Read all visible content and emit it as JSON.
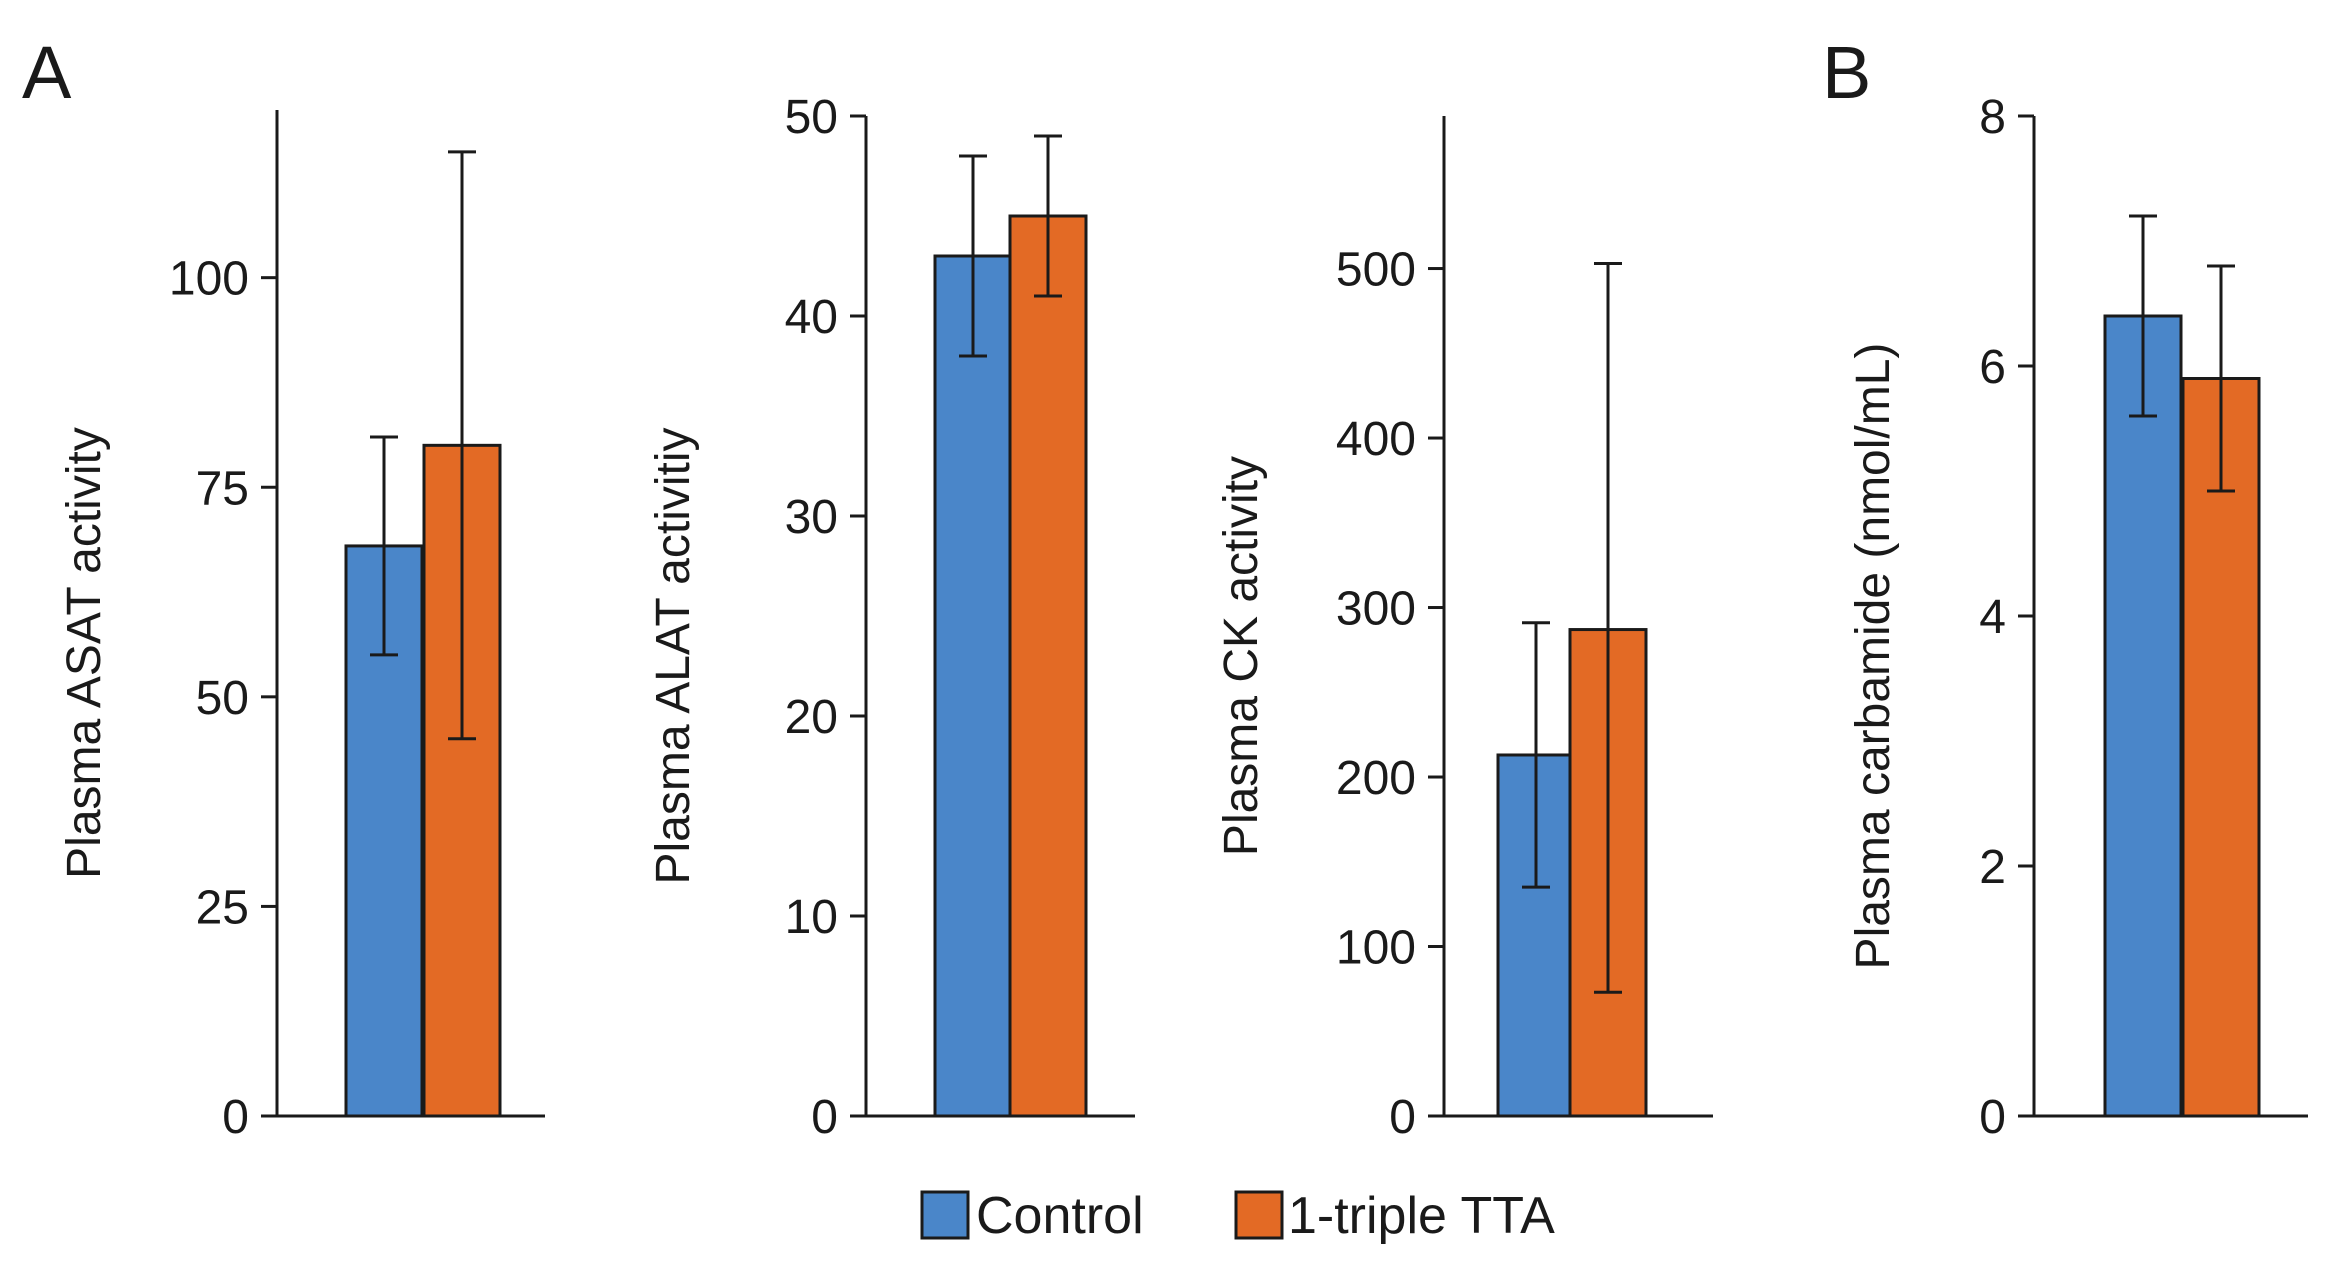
{
  "panel_letters": [
    "A",
    "B"
  ],
  "colors": {
    "control": "#4A86C9",
    "tta": "#E36A25",
    "axis": "#1a1a1a"
  },
  "legend": {
    "items": [
      "Control",
      "1-triple TTA"
    ]
  },
  "chart_data": [
    {
      "type": "bar",
      "panel": "A",
      "ylabel": "Plasma ASAT activity",
      "ylim": [
        0,
        120
      ],
      "ticks": [
        0,
        25,
        50,
        75,
        100
      ],
      "series": [
        {
          "name": "Control",
          "value": 68,
          "err_low": 55,
          "err_high": 81
        },
        {
          "name": "1-triple TTA",
          "value": 80,
          "err_low": 45,
          "err_high": 115
        }
      ]
    },
    {
      "type": "bar",
      "panel": "A",
      "ylabel": "Plasma ALAT activitiy",
      "ylim": [
        0,
        50
      ],
      "ticks": [
        0,
        10,
        20,
        30,
        40,
        50
      ],
      "series": [
        {
          "name": "Control",
          "value": 43,
          "err_low": 38,
          "err_high": 48
        },
        {
          "name": "1-triple TTA",
          "value": 45,
          "err_low": 41,
          "err_high": 49
        }
      ]
    },
    {
      "type": "bar",
      "panel": "A",
      "ylabel": "Plasma CK activity",
      "ylim": [
        0,
        590
      ],
      "ticks": [
        0,
        100,
        200,
        300,
        400,
        500
      ],
      "series": [
        {
          "name": "Control",
          "value": 213,
          "err_low": 135,
          "err_high": 291
        },
        {
          "name": "1-triple TTA",
          "value": 287,
          "err_low": 73,
          "err_high": 503
        }
      ]
    },
    {
      "type": "bar",
      "panel": "B",
      "ylabel": "Plasma carbamide (nmol/mL)",
      "ylim": [
        0,
        8
      ],
      "ticks": [
        0,
        2,
        4,
        6,
        8
      ],
      "series": [
        {
          "name": "Control",
          "value": 6.4,
          "err_low": 5.6,
          "err_high": 7.2
        },
        {
          "name": "1-triple TTA",
          "value": 5.9,
          "err_low": 5.0,
          "err_high": 6.8
        }
      ]
    }
  ]
}
